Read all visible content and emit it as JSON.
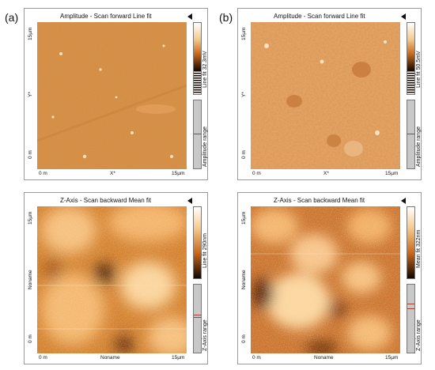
{
  "labels": {
    "a": "(a)",
    "b": "(b)"
  },
  "panels": {
    "tl": {
      "title": "Amplitude - Scan forward   Line fit",
      "y_top": "15µm",
      "y_mid": "Y*",
      "y_bottom": "0 m",
      "x_left": "0 m",
      "x_mid": "X*",
      "x_right": "15µm",
      "scale_label": "Line fit 32.3mV",
      "range_label": "Amplitude range"
    },
    "tr": {
      "title": "Amplitude - Scan forward   Line fit",
      "y_top": "15µm",
      "y_mid": "Y*",
      "y_bottom": "0 m",
      "x_left": "0 m",
      "x_mid": "X*",
      "x_right": "15µm",
      "scale_label": "Line fit 50.5mV",
      "range_label": "Amplitude range"
    },
    "bl": {
      "title": "Z-Axis - Scan backward    Mean fit",
      "y_top": "15µm",
      "y_mid": "Noname",
      "y_bottom": "0 m",
      "x_left": "0 m",
      "x_mid": "Noname",
      "x_right": "15µm",
      "scale_label": "Line fit 290nm",
      "range_label": "Z-Axis range"
    },
    "br": {
      "title": "Z-Axis - Scan backward    Mean fit",
      "y_top": "15µm",
      "y_mid": "Noname",
      "y_bottom": "0 m",
      "x_left": "0 m",
      "x_mid": "Noname",
      "x_right": "15µm",
      "scale_label": "Mean fit 322nm",
      "range_label": "Z-Axis range"
    }
  }
}
